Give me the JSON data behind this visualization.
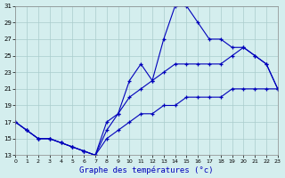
{
  "xlabel": "Graphe des températures (°c)",
  "bg_color": "#d4eeee",
  "grid_color": "#aacccc",
  "line_color": "#0000bb",
  "xlim": [
    0,
    23
  ],
  "ylim": [
    13,
    31
  ],
  "xticks": [
    0,
    1,
    2,
    3,
    4,
    5,
    6,
    7,
    8,
    9,
    10,
    11,
    12,
    13,
    14,
    15,
    16,
    17,
    18,
    19,
    20,
    21,
    22,
    23
  ],
  "yticks": [
    13,
    15,
    17,
    19,
    21,
    23,
    25,
    27,
    29,
    31
  ],
  "line1_x": [
    0,
    1,
    2,
    3,
    4,
    5,
    6,
    7,
    8,
    9,
    10,
    11,
    12,
    13,
    14,
    15,
    16,
    17,
    18,
    19,
    20,
    21,
    22,
    23
  ],
  "line1_y": [
    17,
    16,
    15,
    15,
    14.5,
    14,
    13.5,
    13,
    17,
    18,
    22,
    24,
    22,
    27,
    31,
    31,
    29,
    27,
    27,
    26,
    26,
    25,
    24,
    21
  ],
  "line2_x": [
    0,
    1,
    2,
    3,
    4,
    5,
    6,
    7,
    8,
    9,
    10,
    11,
    12,
    13,
    14,
    15,
    16,
    17,
    18,
    19,
    20,
    21,
    22,
    23
  ],
  "line2_y": [
    17,
    16,
    15,
    15,
    14.5,
    14,
    13.5,
    13,
    16,
    18,
    20,
    21,
    22,
    23,
    24,
    24,
    24,
    24,
    24,
    25,
    26,
    25,
    24,
    21
  ],
  "line3_x": [
    0,
    1,
    2,
    3,
    4,
    5,
    6,
    7,
    8,
    9,
    10,
    11,
    12,
    13,
    14,
    15,
    16,
    17,
    18,
    19,
    20,
    21,
    22,
    23
  ],
  "line3_y": [
    17,
    16,
    15,
    15,
    14.5,
    14,
    13.5,
    13,
    15,
    16,
    17,
    18,
    18,
    19,
    19,
    20,
    20,
    20,
    20,
    21,
    21,
    21,
    21,
    21
  ]
}
